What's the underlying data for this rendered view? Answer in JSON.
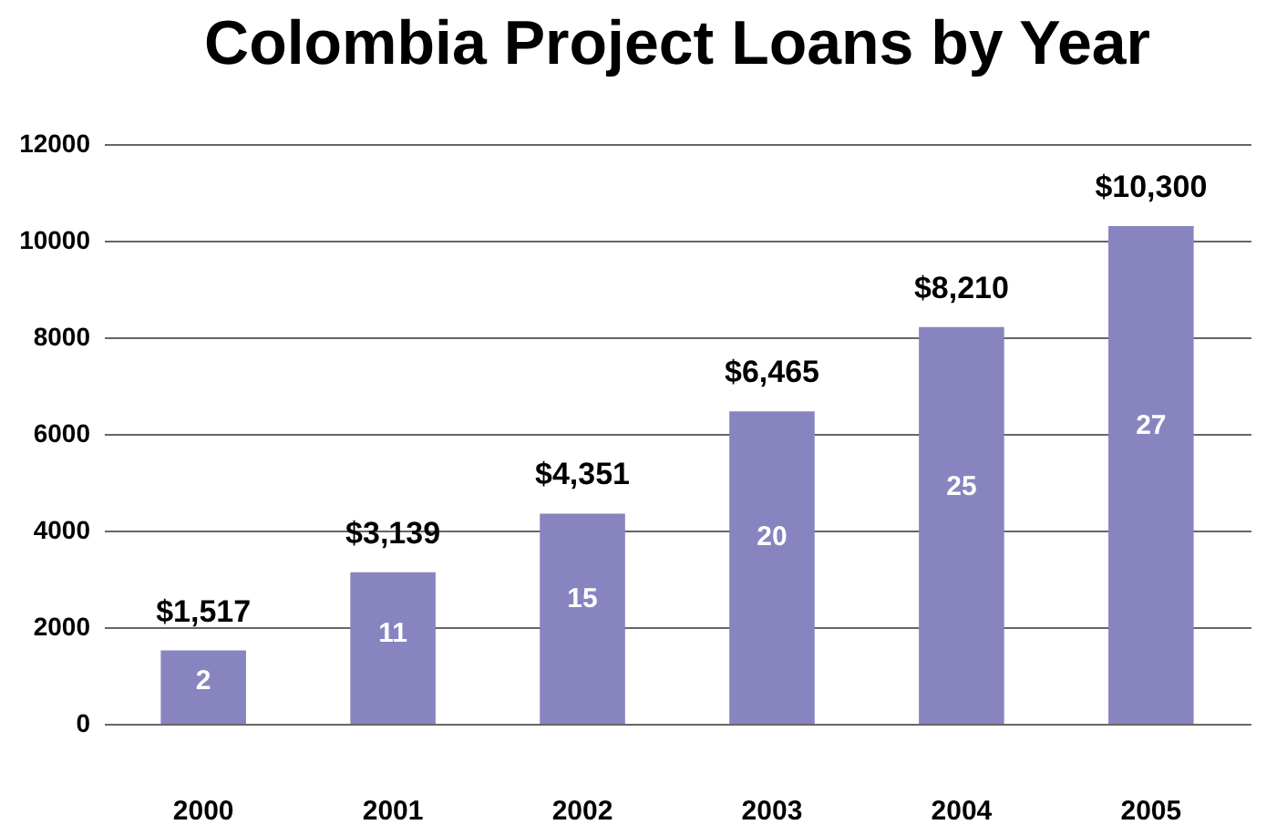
{
  "chart_data": {
    "type": "bar",
    "title": "Colombia Project Loans by Year",
    "categories": [
      "2000",
      "2001",
      "2002",
      "2003",
      "2004",
      "2005"
    ],
    "values": [
      1517,
      3139,
      4351,
      6465,
      8210,
      10300
    ],
    "value_labels": [
      "$1,517",
      "$3,139",
      "$4,351",
      "$6,465",
      "$8,210",
      "$10,300"
    ],
    "color": "#8884c0",
    "ylim": [
      0,
      12000
    ],
    "yticks": [
      0,
      2000,
      4000,
      6000,
      8000,
      10000,
      12000
    ],
    "grid": "y",
    "annotations": [
      "2",
      "11",
      "15",
      "20",
      "25",
      "27"
    ]
  }
}
